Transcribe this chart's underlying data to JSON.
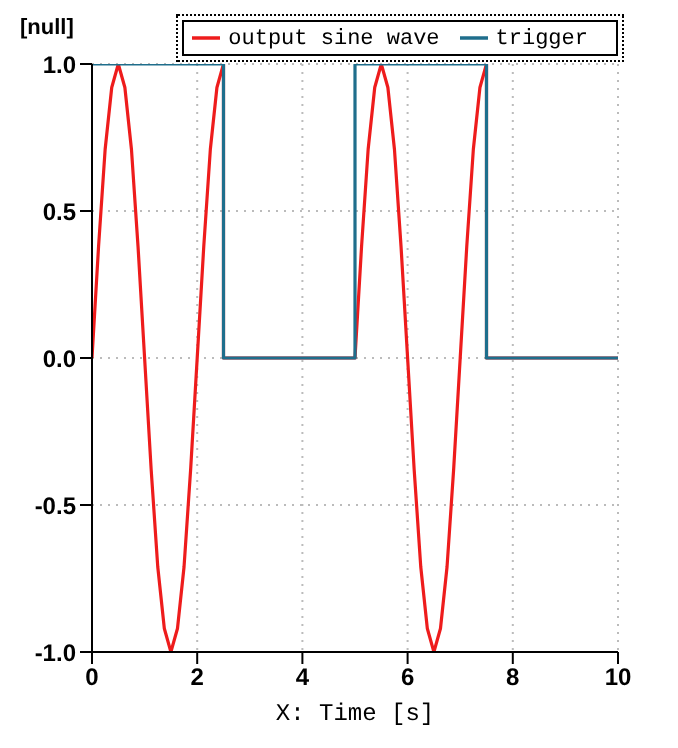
{
  "chart_data": {
    "type": "line",
    "ylabel": "[null]",
    "xlabel": "X: Time [s]",
    "xlim": [
      0,
      10
    ],
    "xticks": [
      0,
      2,
      4,
      6,
      8,
      10
    ],
    "ylim": [
      -1,
      1
    ],
    "yticks": [
      {
        "value": -1,
        "label": "-1.0"
      },
      {
        "value": -0.5,
        "label": "-0.5"
      },
      {
        "value": 0,
        "label": "0.0"
      },
      {
        "value": 0.5,
        "label": "0.5"
      },
      {
        "value": 1,
        "label": "1.0"
      }
    ],
    "grid": true,
    "legend": "top right",
    "line_style": "solid",
    "marker": "none",
    "series": [
      {
        "name": "output sine wave",
        "color": "#ee1c1c",
        "type": "line",
        "x": [
          0,
          0.125,
          0.25,
          0.375,
          0.5,
          0.625,
          0.75,
          0.875,
          1,
          1.125,
          1.25,
          1.375,
          1.5,
          1.625,
          1.75,
          1.875,
          2,
          2.125,
          2.25,
          2.375,
          2.5,
          2.5,
          5,
          5,
          5.125,
          5.25,
          5.375,
          5.5,
          5.625,
          5.75,
          5.875,
          6,
          6.125,
          6.25,
          6.375,
          6.5,
          6.625,
          6.75,
          6.875,
          7,
          7.125,
          7.25,
          7.375,
          7.5,
          7.5,
          10
        ],
        "values": [
          0,
          0.38,
          0.71,
          0.92,
          1,
          0.92,
          0.71,
          0.38,
          0,
          -0.38,
          -0.71,
          -0.92,
          -1,
          -0.92,
          -0.71,
          -0.38,
          0,
          0.38,
          0.71,
          0.92,
          1,
          0,
          0,
          0,
          0.38,
          0.71,
          0.92,
          1,
          0.92,
          0.71,
          0.38,
          0,
          -0.38,
          -0.71,
          -0.92,
          -1,
          -0.92,
          -0.71,
          -0.38,
          0,
          0.38,
          0.71,
          0.92,
          1,
          0,
          0
        ]
      },
      {
        "name": "trigger",
        "color": "#1f6e8c",
        "type": "step",
        "x": [
          0,
          2.5,
          5,
          7.5,
          10
        ],
        "values": [
          1,
          0,
          1,
          0,
          0
        ]
      }
    ]
  }
}
